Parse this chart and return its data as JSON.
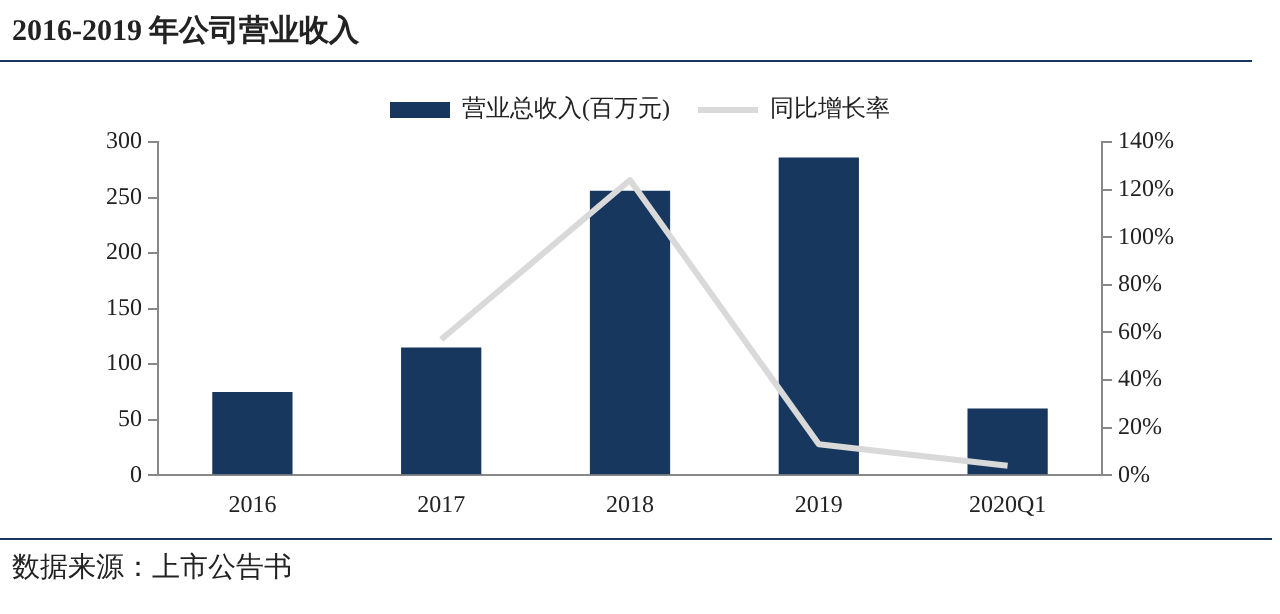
{
  "chart_data": {
    "type": "bar",
    "title": "2016-2019 年公司营业收入",
    "categories": [
      "2016",
      "2017",
      "2018",
      "2019",
      "2020Q1"
    ],
    "series": [
      {
        "name": "营业总收入(百万元)",
        "color": "#17375e",
        "values": [
          75,
          115,
          256,
          286,
          60
        ]
      },
      {
        "name": "同比增长率",
        "type": "line",
        "axis": "y2",
        "color": "#d9d9d9",
        "values": [
          null,
          57,
          124,
          13,
          4
        ]
      }
    ],
    "ylim": [
      0,
      300
    ],
    "yticks": [
      0,
      50,
      100,
      150,
      200,
      250,
      300
    ],
    "y2lim": [
      0,
      140
    ],
    "y2ticks": [
      {
        "value": 0,
        "label": "0%"
      },
      {
        "value": 20,
        "label": "20%"
      },
      {
        "value": 40,
        "label": "40%"
      },
      {
        "value": 60,
        "label": "60%"
      },
      {
        "value": 80,
        "label": "80%"
      },
      {
        "value": 100,
        "label": "100%"
      },
      {
        "value": 120,
        "label": "120%"
      },
      {
        "value": 140,
        "label": "140%"
      }
    ],
    "grid": false,
    "legend": "top",
    "marker": "none",
    "annotations": [
      "数据来源：上市公告书"
    ]
  }
}
